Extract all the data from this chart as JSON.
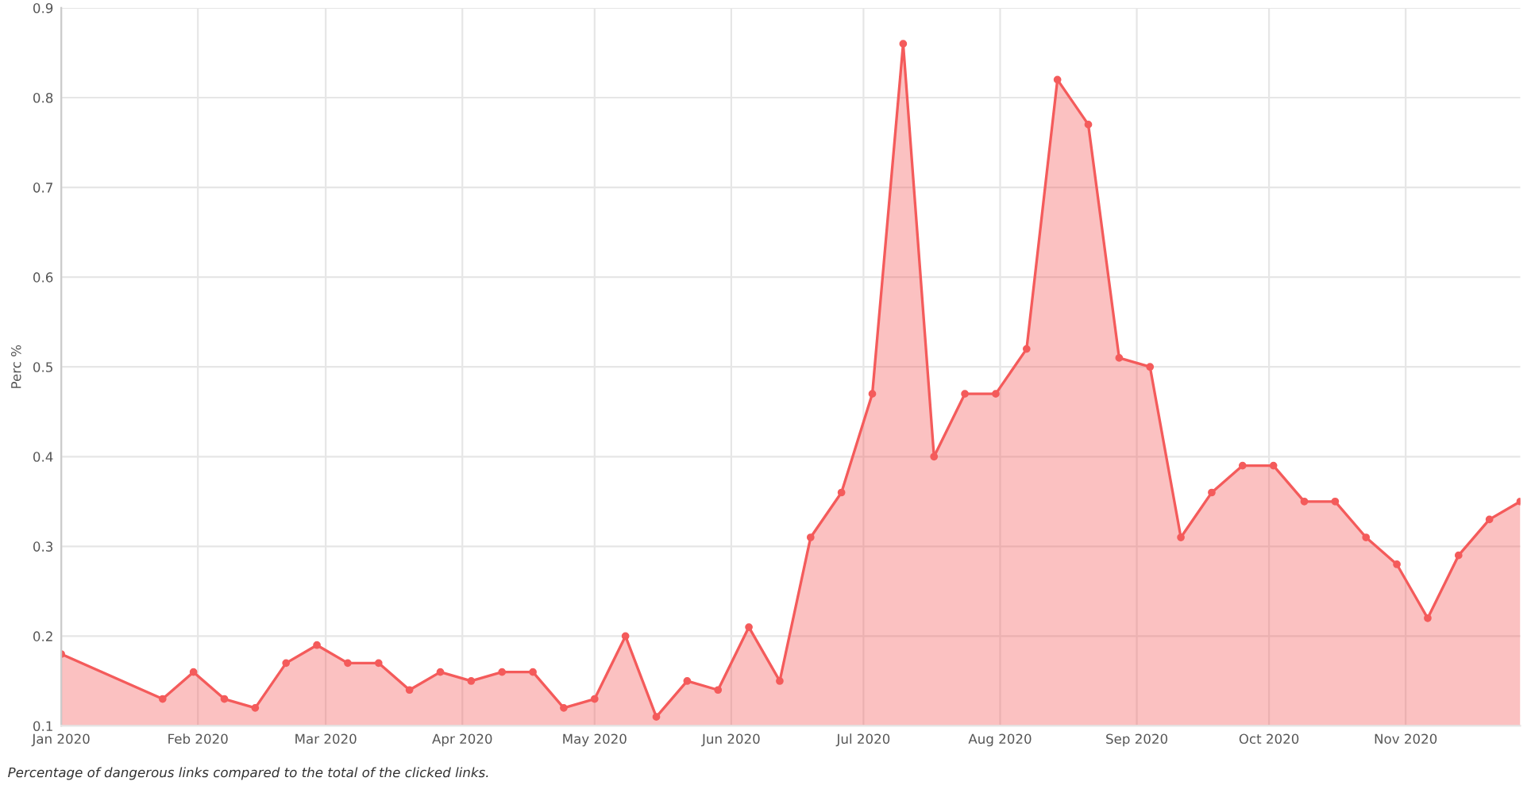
{
  "chart_data": {
    "type": "area",
    "ylabel": "Perc %",
    "annotations": [
      "Percentage of dangerous links compared to the total of the clicked links."
    ],
    "x": [
      "2020-01-01",
      "2020-01-24",
      "2020-01-31",
      "2020-02-07",
      "2020-02-14",
      "2020-02-21",
      "2020-02-28",
      "2020-03-06",
      "2020-03-13",
      "2020-03-20",
      "2020-03-27",
      "2020-04-03",
      "2020-04-10",
      "2020-04-17",
      "2020-04-24",
      "2020-05-01",
      "2020-05-08",
      "2020-05-15",
      "2020-05-22",
      "2020-05-29",
      "2020-06-05",
      "2020-06-12",
      "2020-06-19",
      "2020-06-26",
      "2020-07-03",
      "2020-07-10",
      "2020-07-17",
      "2020-07-24",
      "2020-07-31",
      "2020-08-07",
      "2020-08-14",
      "2020-08-21",
      "2020-08-28",
      "2020-09-04",
      "2020-09-11",
      "2020-09-18",
      "2020-09-25",
      "2020-10-02",
      "2020-10-09",
      "2020-10-16",
      "2020-10-23",
      "2020-10-30",
      "2020-11-06",
      "2020-11-13",
      "2020-11-20",
      "2020-11-27"
    ],
    "series": [
      {
        "color": "#f45b5b",
        "values": [
          0.18,
          0.13,
          0.16,
          0.13,
          0.12,
          0.17,
          0.19,
          0.17,
          0.17,
          0.14,
          0.16,
          0.15,
          0.16,
          0.16,
          0.12,
          0.13,
          0.2,
          0.11,
          0.15,
          0.14,
          0.21,
          0.15,
          0.31,
          0.36,
          0.47,
          0.86,
          0.4,
          0.47,
          0.47,
          0.52,
          0.82,
          0.77,
          0.51,
          0.5,
          0.31,
          0.36,
          0.39,
          0.39,
          0.35,
          0.35,
          0.31,
          0.28,
          0.22,
          0.29,
          0.33,
          0.35
        ]
      }
    ],
    "xlim": [
      "2020-01-01",
      "2020-11-27"
    ],
    "xticks": [
      {
        "value": "2020-01-01",
        "label": "Jan 2020"
      },
      {
        "value": "2020-02-01",
        "label": "Feb 2020"
      },
      {
        "value": "2020-03-01",
        "label": "Mar 2020"
      },
      {
        "value": "2020-04-01",
        "label": "Apr 2020"
      },
      {
        "value": "2020-05-01",
        "label": "May 2020"
      },
      {
        "value": "2020-06-01",
        "label": "Jun 2020"
      },
      {
        "value": "2020-07-01",
        "label": "Jul 2020"
      },
      {
        "value": "2020-08-01",
        "label": "Aug 2020"
      },
      {
        "value": "2020-09-01",
        "label": "Sep 2020"
      },
      {
        "value": "2020-10-01",
        "label": "Oct 2020"
      },
      {
        "value": "2020-11-01",
        "label": "Nov 2020"
      }
    ],
    "ylim": [
      0.1,
      0.9
    ],
    "yticks": [
      0.1,
      0.2,
      0.3,
      0.4,
      0.5,
      0.6,
      0.7,
      0.8,
      0.9
    ],
    "grid": true,
    "legend": false,
    "marker": "circle",
    "line_style": "solid"
  }
}
